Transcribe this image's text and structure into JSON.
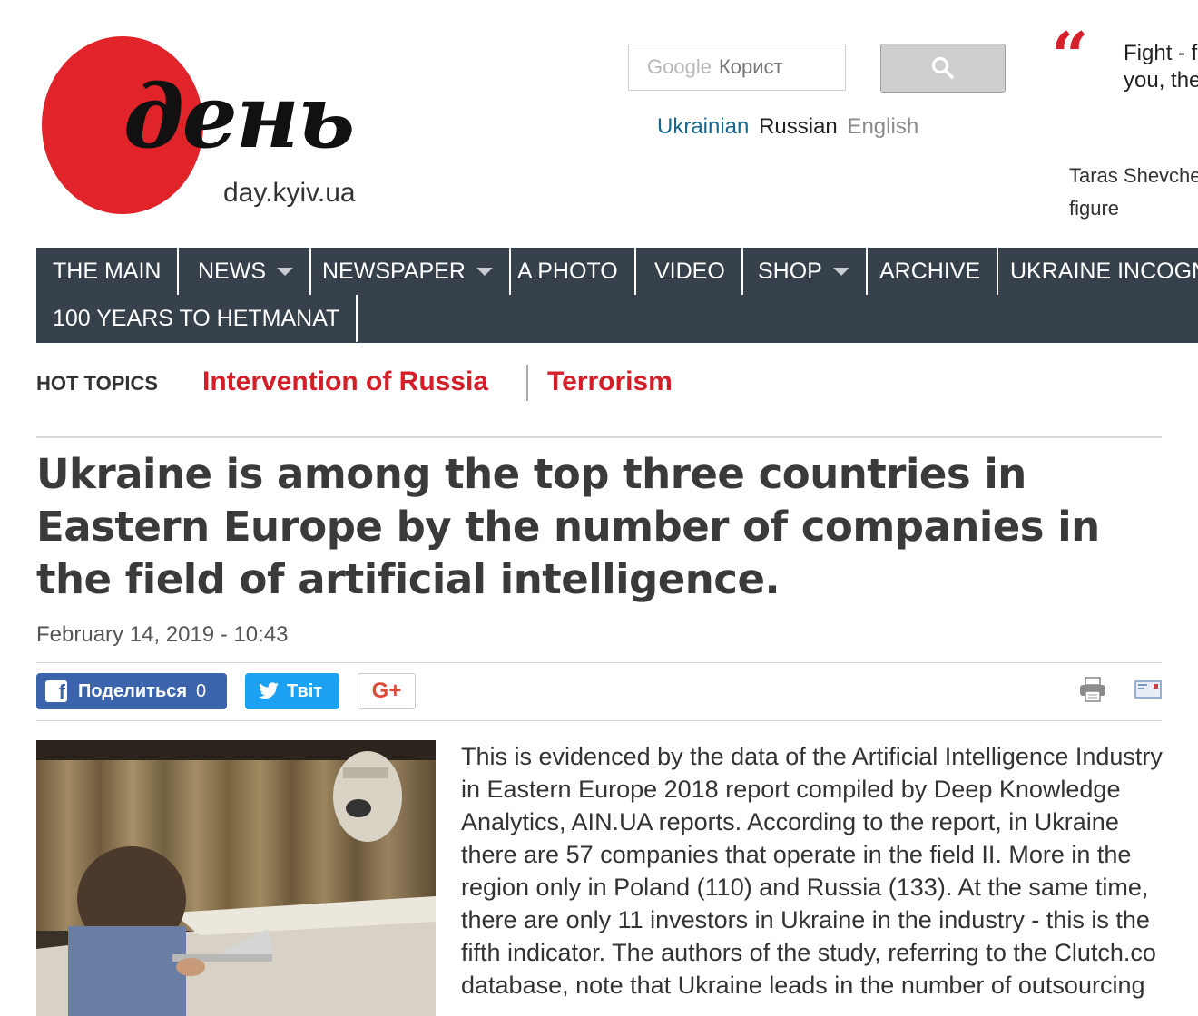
{
  "logo": {
    "word": "день",
    "domain": "day.kyiv.ua"
  },
  "search": {
    "brand": "Google",
    "placeholder": "Корист"
  },
  "languages": {
    "ukrainian": "Ukrainian",
    "russian": "Russian",
    "english": "English"
  },
  "quote": {
    "text_line1": "Fight - f",
    "text_line2": "you, the",
    "author_line1": "Taras Shevche",
    "author_line2": "figure"
  },
  "nav": {
    "items": [
      "THE MAIN",
      "NEWS",
      "NEWSPAPER",
      "A PHOTO",
      "VIDEO",
      "SHOP",
      "ARCHIVE",
      "UKRAINE INCOGN",
      "100 YEARS TO HETMANAT"
    ]
  },
  "hot_topics": {
    "label": "HOT TOPICS",
    "links": [
      "Intervention of Russia",
      "Terrorism"
    ]
  },
  "article": {
    "title": "Ukraine is among the top three countries in Eastern Europe by the number of companies in the field of artificial intelligence.",
    "date": "February 14, 2019 - 10:43",
    "body": "This is evidenced by the data of the Artificial Intelligence Industry in Eastern Europe 2018 report compiled by Deep Knowledge Analytics, AIN.UA reports. According to the report, in Ukraine there are 57 companies that operate in the field II. More in the region only in Poland (110) and Russia (133). At the same time, there are only 11 investors in Ukraine in the industry - this is the fifth indicator. The authors of the study, referring to the Clutch.co database, note that Ukraine leads in the number of outsourcing"
  },
  "share": {
    "facebook_label": "Поделиться",
    "facebook_count": "0",
    "twitter_label": "Твіт",
    "gplus_label": "G+"
  },
  "colors": {
    "brand_red": "#e0242a",
    "nav_bg": "#37414b",
    "hot_red": "#d41f29",
    "facebook": "#3b64ad",
    "twitter": "#1da1f2"
  }
}
